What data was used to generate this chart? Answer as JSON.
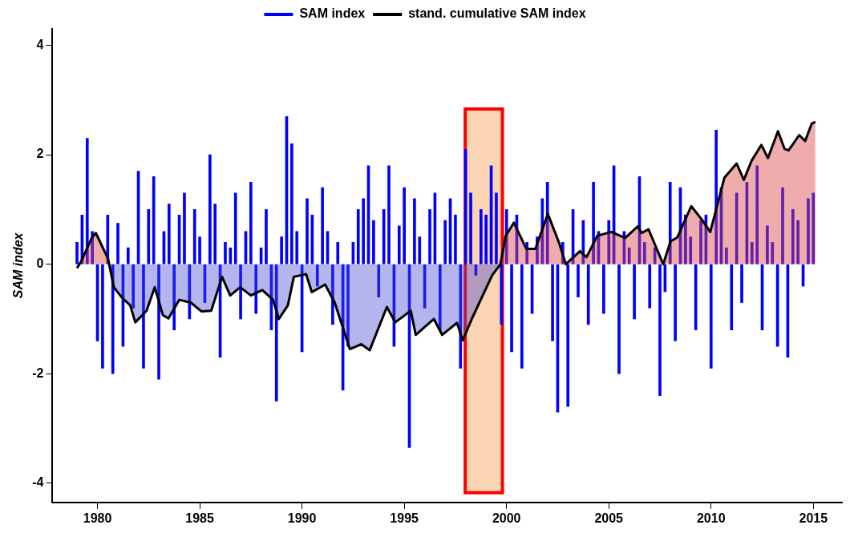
{
  "chart_data": {
    "type": "bar",
    "ylabel": "SAM index",
    "legend": "top",
    "grid": false,
    "xlim": [
      1977.8,
      2016.4
    ],
    "xticks": [
      1980,
      1985,
      1990,
      1995,
      2000,
      2005,
      2010,
      2015
    ],
    "ylim": [
      -4.35,
      4.3
    ],
    "yticks": [
      -4,
      -2,
      0,
      2,
      4
    ],
    "series": [
      {
        "name": "SAM index",
        "color": "#0000ff",
        "x": [
          1979,
          1979.25,
          1979.5,
          1979.75,
          1980,
          1980.25,
          1980.5,
          1980.75,
          1981,
          1981.25,
          1981.5,
          1981.75,
          1982,
          1982.25,
          1982.5,
          1982.75,
          1983,
          1983.25,
          1983.5,
          1983.75,
          1984,
          1984.25,
          1984.5,
          1984.75,
          1985,
          1985.25,
          1985.5,
          1985.75,
          1986,
          1986.25,
          1986.5,
          1986.75,
          1987,
          1987.25,
          1987.5,
          1987.75,
          1988,
          1988.25,
          1988.5,
          1988.75,
          1989,
          1989.25,
          1989.5,
          1989.75,
          1990,
          1990.25,
          1990.5,
          1990.75,
          1991,
          1991.25,
          1991.5,
          1991.75,
          1992,
          1992.25,
          1992.5,
          1992.75,
          1993,
          1993.25,
          1993.5,
          1993.75,
          1994,
          1994.25,
          1994.5,
          1994.75,
          1995,
          1995.25,
          1995.5,
          1995.75,
          1996,
          1996.25,
          1996.5,
          1996.75,
          1997,
          1997.25,
          1997.5,
          1997.75,
          1998,
          1998.25,
          1998.5,
          1998.75,
          1999,
          1999.25,
          1999.5,
          1999.75,
          2000,
          2000.25,
          2000.5,
          2000.75,
          2001,
          2001.25,
          2001.5,
          2001.75,
          2002,
          2002.25,
          2002.5,
          2002.75,
          2003,
          2003.25,
          2003.5,
          2003.75,
          2004,
          2004.25,
          2004.5,
          2004.75,
          2005,
          2005.25,
          2005.5,
          2005.75,
          2006,
          2006.25,
          2006.5,
          2006.75,
          2007,
          2007.25,
          2007.5,
          2007.75,
          2008,
          2008.25,
          2008.5,
          2008.75,
          2009,
          2009.25,
          2009.5,
          2009.75,
          2010,
          2010.25,
          2010.5,
          2010.75,
          2011,
          2011.25,
          2011.5,
          2011.75,
          2012,
          2012.25,
          2012.5,
          2012.75,
          2013,
          2013.25,
          2013.5,
          2013.75,
          2014,
          2014.25,
          2014.5,
          2014.75,
          2015
        ],
        "values": [
          0.4,
          0.9,
          2.3,
          0.6,
          -1.4,
          -1.9,
          0.9,
          -2.0,
          0.75,
          -1.5,
          0.3,
          -0.8,
          1.7,
          -1.9,
          1.0,
          1.6,
          -2.1,
          0.6,
          1.1,
          -1.2,
          0.9,
          1.3,
          -1.0,
          1.0,
          0.5,
          -0.7,
          2.0,
          1.1,
          -1.7,
          0.4,
          0.3,
          1.3,
          -1.0,
          0.6,
          1.5,
          -0.9,
          0.3,
          1.0,
          -1.2,
          -2.5,
          0.5,
          2.7,
          2.2,
          0.6,
          -1.6,
          1.2,
          0.9,
          -0.4,
          1.4,
          0.6,
          -1.1,
          0.4,
          -2.3,
          -1.5,
          0.4,
          1.0,
          1.2,
          1.8,
          0.8,
          -0.6,
          1.0,
          1.8,
          -1.5,
          0.7,
          1.4,
          -3.35,
          1.2,
          0.5,
          -0.8,
          1.0,
          1.3,
          -1.2,
          0.8,
          1.2,
          0.9,
          -1.9,
          2.1,
          1.3,
          -0.2,
          1.0,
          0.9,
          1.8,
          1.3,
          -1.1,
          1.0,
          -1.6,
          0.9,
          -1.9,
          0.4,
          -0.9,
          0.5,
          1.2,
          1.5,
          -1.4,
          -2.7,
          0.4,
          -2.6,
          1.0,
          -0.6,
          0.8,
          -1.1,
          1.5,
          0.6,
          -0.9,
          0.8,
          1.8,
          -2.0,
          0.6,
          0.3,
          -1.0,
          1.6,
          0.4,
          -0.8,
          0.3,
          -2.4,
          -0.5,
          1.5,
          -1.4,
          1.4,
          0.9,
          0.5,
          -1.2,
          0.8,
          0.9,
          -1.9,
          2.45,
          1.4,
          0.3,
          -1.2,
          1.3,
          -0.7,
          1.5,
          0.4,
          1.8,
          -1.2,
          0.7,
          0.4,
          -1.5,
          1.4,
          -1.7,
          1.0,
          0.8,
          -0.4,
          1.2,
          1.3
        ]
      },
      {
        "name": "stand. cumulative SAM index",
        "type": "line",
        "color": "#000000",
        "x": [
          1979.0,
          1979.2,
          1979.72,
          1979.92,
          1980.52,
          1980.8,
          1981.2,
          1981.6,
          1981.85,
          1982.4,
          1982.8,
          1983.2,
          1983.47,
          1984.0,
          1984.56,
          1985.08,
          1985.56,
          1986.09,
          1986.49,
          1986.98,
          1987.5,
          1988.06,
          1988.59,
          1988.87,
          1989.31,
          1989.6,
          1990.2,
          1990.48,
          1991.13,
          1991.6,
          1992.34,
          1992.9,
          1993.31,
          1994.15,
          1994.56,
          1995.32,
          1995.56,
          1996.45,
          1996.85,
          1997.58,
          1997.86,
          1998.3,
          1998.8,
          1999.3,
          1999.7,
          1999.96,
          2000.36,
          2000.97,
          2001.41,
          2002.02,
          2002.58,
          2002.9,
          2003.59,
          2003.91,
          2004.44,
          2005.12,
          2005.8,
          2006.41,
          2006.61,
          2006.94,
          2007.66,
          2008.02,
          2008.35,
          2009.03,
          2009.56,
          2009.96,
          2010.24,
          2010.65,
          2011.25,
          2011.6,
          2011.98,
          2012.46,
          2012.78,
          2013.27,
          2013.59,
          2013.79,
          2014.31,
          2014.6,
          2014.92,
          2015.1
        ],
        "values": [
          -0.07,
          0.05,
          0.48,
          0.57,
          0.1,
          -0.42,
          -0.61,
          -0.75,
          -1.06,
          -0.85,
          -0.42,
          -0.93,
          -0.99,
          -0.65,
          -0.7,
          -0.86,
          -0.85,
          -0.23,
          -0.57,
          -0.42,
          -0.57,
          -0.47,
          -0.65,
          -1.0,
          -0.75,
          -0.23,
          -0.18,
          -0.51,
          -0.37,
          -0.7,
          -1.55,
          -1.46,
          -1.57,
          -0.78,
          -1.06,
          -0.85,
          -1.29,
          -1.0,
          -1.29,
          -1.07,
          -1.39,
          -1.0,
          -0.6,
          -0.2,
          0.0,
          0.52,
          0.76,
          0.28,
          0.28,
          0.92,
          0.38,
          0.0,
          0.24,
          0.13,
          0.52,
          0.59,
          0.48,
          0.69,
          0.57,
          0.64,
          0.0,
          0.42,
          0.49,
          1.06,
          0.81,
          0.59,
          0.99,
          1.58,
          1.84,
          1.54,
          1.89,
          2.18,
          1.94,
          2.43,
          2.11,
          2.08,
          2.36,
          2.25,
          2.57,
          2.6
        ]
      }
    ],
    "bands": [
      {
        "axis": "x",
        "from": 1997.98,
        "to": 1999.8,
        "color": "#f9c9a0"
      }
    ]
  }
}
